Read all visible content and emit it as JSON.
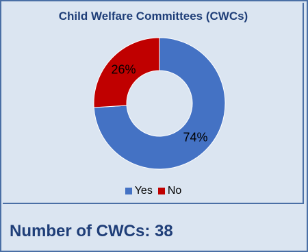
{
  "chart_data": {
    "type": "pie",
    "title": "Child Welfare Committees (CWCs)",
    "donut": true,
    "categories": [
      "Yes",
      "No"
    ],
    "values": [
      74,
      26
    ],
    "data_labels": [
      "74%",
      "26%"
    ],
    "colors": [
      "#4472c4",
      "#c00000"
    ],
    "legend_position": "bottom"
  },
  "legend": [
    {
      "label": "Yes",
      "color": "#4472c4"
    },
    {
      "label": "No",
      "color": "#c00000"
    }
  ],
  "footer": {
    "text": "Number of CWCs: 38"
  }
}
